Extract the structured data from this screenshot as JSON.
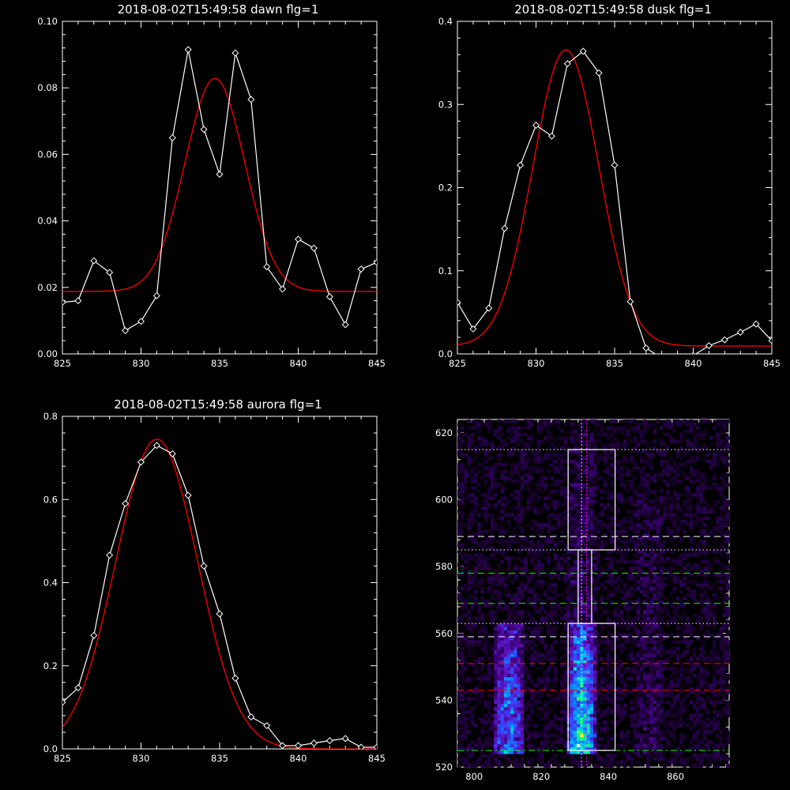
{
  "chart_data": [
    {
      "type": "line",
      "title": "2018-08-02T15:49:58 dawn flg=1",
      "xlim": [
        825,
        845
      ],
      "ylim": [
        0.0,
        0.1
      ],
      "xticks": [
        "825",
        "830",
        "835",
        "840",
        "845"
      ],
      "yticks": [
        "0.00",
        "0.02",
        "0.04",
        "0.06",
        "0.08",
        "0.10"
      ],
      "series": [
        {
          "kind": "data",
          "color": "#ffffff",
          "marker": "diamond",
          "x": [
            825,
            826,
            827,
            828,
            829,
            830,
            831,
            832,
            833,
            834,
            835,
            836,
            837,
            838,
            839,
            840,
            841,
            842,
            843,
            844,
            845
          ],
          "y": [
            0.0155,
            0.016,
            0.028,
            0.0245,
            0.007,
            0.0098,
            0.0175,
            0.065,
            0.0915,
            0.0675,
            0.054,
            0.0905,
            0.0765,
            0.0262,
            0.0195,
            0.0345,
            0.0318,
            0.0172,
            0.0088,
            0.0255,
            0.0275
          ]
        },
        {
          "kind": "fit",
          "color": "#ff0000",
          "model": "gaussian",
          "center": 834.7,
          "sigma": 1.9,
          "amplitude": 0.064,
          "baseline": 0.0188
        }
      ]
    },
    {
      "type": "line",
      "title": "2018-08-02T15:49:58 dusk flg=1",
      "xlim": [
        825,
        845
      ],
      "ylim": [
        0.0,
        0.4
      ],
      "xticks": [
        "825",
        "830",
        "835",
        "840",
        "845"
      ],
      "yticks": [
        "0.0",
        "0.1",
        "0.2",
        "0.3",
        "0.4"
      ],
      "series": [
        {
          "kind": "data",
          "color": "#ffffff",
          "marker": "diamond",
          "x": [
            825,
            826,
            827,
            828,
            829,
            830,
            831,
            832,
            833,
            834,
            835,
            836,
            837,
            838,
            839,
            840,
            841,
            842,
            843,
            844,
            845
          ],
          "y": [
            0.062,
            0.03,
            0.055,
            0.151,
            0.227,
            0.275,
            0.262,
            0.349,
            0.364,
            0.338,
            0.227,
            0.063,
            0.007,
            -0.005,
            -0.008,
            -0.002,
            0.01,
            0.017,
            0.026,
            0.036,
            0.016
          ]
        },
        {
          "kind": "fit",
          "color": "#ff0000",
          "model": "gaussian",
          "center": 831.9,
          "sigma": 2.1,
          "amplitude": 0.356,
          "baseline": 0.0095
        }
      ]
    },
    {
      "type": "line",
      "title": "2018-08-02T15:49:58 aurora flg=1",
      "xlim": [
        825,
        845
      ],
      "ylim": [
        0.0,
        0.8
      ],
      "xticks": [
        "825",
        "830",
        "835",
        "840",
        "845"
      ],
      "yticks": [
        "0.0",
        "0.2",
        "0.4",
        "0.6",
        "0.8"
      ],
      "series": [
        {
          "kind": "data",
          "color": "#ffffff",
          "marker": "diamond",
          "x": [
            825,
            826,
            827,
            828,
            829,
            830,
            831,
            832,
            833,
            834,
            835,
            836,
            837,
            838,
            839,
            840,
            841,
            842,
            843,
            844,
            845
          ],
          "y": [
            0.112,
            0.147,
            0.273,
            0.466,
            0.59,
            0.69,
            0.73,
            0.71,
            0.61,
            0.44,
            0.325,
            0.17,
            0.077,
            0.056,
            0.008,
            0.008,
            0.014,
            0.02,
            0.025,
            0.004,
            0.004
          ]
        },
        {
          "kind": "fit",
          "color": "#ff0000",
          "model": "gaussian",
          "center": 831.0,
          "sigma": 2.6,
          "amplitude": 0.745,
          "baseline": 0.0
        }
      ]
    },
    {
      "type": "heatmap",
      "title": "",
      "xlim": [
        795,
        876
      ],
      "ylim": [
        520,
        624
      ],
      "xticks": [
        "800",
        "820",
        "840",
        "860"
      ],
      "yticks": [
        "520",
        "540",
        "560",
        "580",
        "600",
        "620"
      ],
      "colormap": [
        "#000000",
        "#1a0030",
        "#3a0075",
        "#5a10b5",
        "#3a40ff",
        "#0090ff",
        "#00e0e0",
        "#00ff60",
        "#ffff00",
        "#ffffff"
      ],
      "bright_columns": [
        {
          "x": [
            806,
            815
          ],
          "y": [
            524,
            563
          ],
          "peak": 0.55
        },
        {
          "x": [
            828,
            836
          ],
          "y": [
            524,
            563
          ],
          "peak": 0.8
        }
      ],
      "faint_columns": [
        {
          "x": [
            828,
            836
          ],
          "y": [
            563,
            620
          ],
          "peak": 0.15
        },
        {
          "x": [
            848,
            856
          ],
          "y": [
            524,
            600
          ],
          "peak": 0.12
        }
      ],
      "boxes": [
        {
          "x0": 828,
          "x1": 842,
          "y0": 585,
          "y1": 615,
          "color": "#ffffff"
        },
        {
          "x0": 831,
          "x1": 835,
          "y0": 563,
          "y1": 585,
          "color": "#ffffff"
        },
        {
          "x0": 828,
          "x1": 842,
          "y0": 525,
          "y1": 563,
          "color": "#ffffff"
        }
      ],
      "hlines": [
        {
          "y": 615,
          "color": "#ffffff",
          "style": "dotted"
        },
        {
          "y": 589,
          "color": "#ffffff",
          "style": "dashed"
        },
        {
          "y": 585,
          "color": "#ffffff",
          "style": "dotted"
        },
        {
          "y": 578,
          "color": "#00ff00",
          "style": "dashed"
        },
        {
          "y": 569,
          "color": "#00ff00",
          "style": "dashed"
        },
        {
          "y": 563,
          "color": "#ffffff",
          "style": "dotted"
        },
        {
          "y": 559,
          "color": "#ffffff",
          "style": "dashed"
        },
        {
          "y": 551,
          "color": "#ff0000",
          "style": "dashed"
        },
        {
          "y": 543,
          "color": "#ff0000",
          "style": "dashed"
        },
        {
          "y": 525,
          "color": "#00ff00",
          "style": "dashdot"
        }
      ],
      "vlines": [
        {
          "x": 832,
          "color": "#ffffff",
          "style": "dotted"
        },
        {
          "x": 833.5,
          "color": "#ff00ff",
          "style": "dotted"
        }
      ]
    }
  ]
}
